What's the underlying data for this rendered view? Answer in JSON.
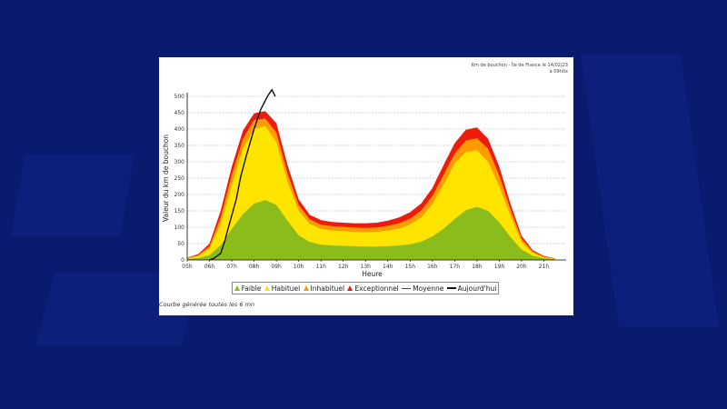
{
  "header_note": "Km de bouchon - Île de France le 14/02/23 à 09h0x",
  "caption": "Courbe générée toutes les 6 mn",
  "colors": {
    "faible": "#8cbc1c",
    "habituel": "#ffe400",
    "inhabituel": "#ff9a00",
    "exceptionnel": "#ee1c0c",
    "moyenne": "#444444",
    "aujourdhui": "#111111"
  },
  "chart_data": {
    "type": "area",
    "title": "",
    "xlabel": "Heure",
    "ylabel": "Valeur du km de bouchon",
    "ylim": [
      0,
      500
    ],
    "yticks": [
      0,
      50,
      100,
      150,
      200,
      250,
      300,
      350,
      400,
      450,
      500
    ],
    "xticks": [
      "05h",
      "06h",
      "07h",
      "08h",
      "09h",
      "10h",
      "11h",
      "12h",
      "13h",
      "14h",
      "15h",
      "16h",
      "17h",
      "18h",
      "19h",
      "20h",
      "21h"
    ],
    "x": [
      5,
      5.5,
      6,
      6.5,
      7,
      7.5,
      8,
      8.5,
      9,
      9.5,
      10,
      10.5,
      11,
      11.5,
      12,
      12.5,
      13,
      13.5,
      14,
      14.5,
      15,
      15.5,
      16,
      16.5,
      17,
      17.5,
      18,
      18.5,
      19,
      19.5,
      20,
      20.5,
      21,
      21.5
    ],
    "series": [
      {
        "name": "Faible",
        "values": [
          3,
          6,
          15,
          45,
          95,
          140,
          172,
          183,
          168,
          120,
          75,
          55,
          47,
          44,
          43,
          42,
          41,
          41,
          42,
          44,
          48,
          56,
          72,
          95,
          125,
          152,
          162,
          150,
          115,
          70,
          32,
          13,
          5,
          2
        ]
      },
      {
        "name": "Habituel",
        "values": [
          5,
          12,
          35,
          110,
          230,
          340,
          400,
          410,
          360,
          240,
          150,
          110,
          95,
          90,
          88,
          86,
          85,
          86,
          90,
          96,
          108,
          130,
          170,
          230,
          295,
          330,
          335,
          300,
          225,
          135,
          55,
          22,
          8,
          3
        ]
      },
      {
        "name": "Inhabituel",
        "values": [
          6,
          15,
          42,
          130,
          260,
          370,
          428,
          432,
          390,
          265,
          168,
          124,
          108,
          103,
          101,
          99,
          98,
          99,
          104,
          112,
          126,
          151,
          195,
          260,
          325,
          365,
          372,
          340,
          258,
          155,
          65,
          26,
          10,
          4
        ]
      },
      {
        "name": "Exceptionnel",
        "values": [
          7,
          18,
          50,
          150,
          285,
          395,
          448,
          455,
          418,
          290,
          185,
          138,
          122,
          116,
          114,
          112,
          112,
          114,
          120,
          130,
          146,
          173,
          220,
          290,
          357,
          398,
          405,
          370,
          285,
          172,
          74,
          30,
          12,
          5
        ]
      }
    ],
    "lines": [
      {
        "name": "Moyenne",
        "x": [],
        "values": []
      },
      {
        "name": "Aujourd'hui",
        "x": [
          6,
          6.2,
          6.5,
          6.7,
          6.75,
          7.2,
          7.4,
          7.7,
          8,
          8.3,
          8.6,
          8.8,
          8.95
        ],
        "values": [
          0,
          5,
          20,
          60,
          75,
          185,
          255,
          330,
          400,
          460,
          500,
          520,
          500
        ]
      }
    ],
    "legend": [
      "Faible",
      "Habituel",
      "Inhabituel",
      "Exceptionnel",
      "Moyenne",
      "Aujourd'hui"
    ],
    "legend_position": "bottom",
    "grid": true
  }
}
